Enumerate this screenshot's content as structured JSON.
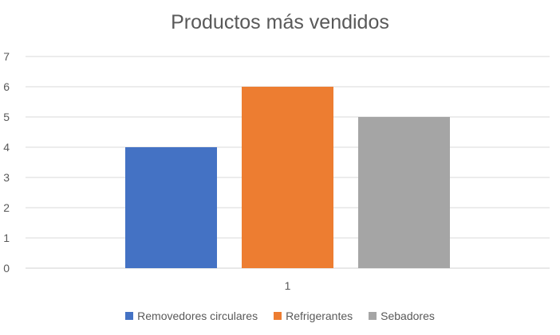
{
  "chart_data": {
    "type": "bar",
    "title": "Productos más vendidos",
    "xlabel": "",
    "ylabel": "",
    "categories": [
      "1"
    ],
    "ylim": [
      0,
      7
    ],
    "yticks": [
      0,
      1,
      2,
      3,
      4,
      5,
      6,
      7
    ],
    "grid": true,
    "legend_position": "bottom",
    "series": [
      {
        "name": "Removedores circulares",
        "values": [
          4
        ],
        "color": "#4472C4"
      },
      {
        "name": "Refrigerantes",
        "values": [
          6
        ],
        "color": "#ED7D31"
      },
      {
        "name": "Sebadores",
        "values": [
          5
        ],
        "color": "#A5A5A5"
      }
    ]
  }
}
